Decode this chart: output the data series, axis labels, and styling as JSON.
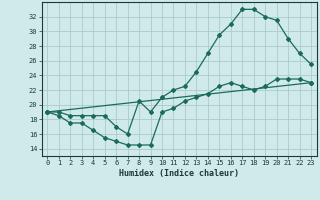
{
  "bg_color": "#d0eaea",
  "grid_color": "#aacccc",
  "line_color": "#1a6b5a",
  "xlabel": "Humidex (Indice chaleur)",
  "xlim": [
    -0.5,
    23.5
  ],
  "ylim": [
    13,
    34
  ],
  "yticks": [
    14,
    16,
    18,
    20,
    22,
    24,
    26,
    28,
    30,
    32
  ],
  "xticks": [
    0,
    1,
    2,
    3,
    4,
    5,
    6,
    7,
    8,
    9,
    10,
    11,
    12,
    13,
    14,
    15,
    16,
    17,
    18,
    19,
    20,
    21,
    22,
    23
  ],
  "line1_x": [
    0,
    1,
    2,
    3,
    4,
    5,
    6,
    7,
    8,
    9,
    10,
    11,
    12,
    13,
    14,
    15,
    16,
    17,
    18,
    19,
    20,
    21,
    22,
    23
  ],
  "line1_y": [
    19.0,
    18.5,
    17.5,
    17.5,
    16.5,
    15.5,
    15.0,
    14.5,
    14.5,
    14.5,
    19.0,
    19.5,
    20.5,
    21.0,
    21.5,
    22.5,
    23.0,
    22.5,
    22.0,
    22.5,
    23.5,
    23.5,
    23.5,
    23.0
  ],
  "line2_x": [
    0,
    1,
    2,
    3,
    4,
    5,
    6,
    7,
    8,
    9,
    10,
    11,
    12,
    13,
    14,
    15,
    16,
    17,
    18,
    19,
    20,
    21,
    22,
    23
  ],
  "line2_y": [
    19.0,
    19.0,
    18.5,
    18.5,
    18.5,
    18.5,
    17.0,
    16.0,
    20.5,
    19.0,
    21.0,
    22.0,
    22.5,
    24.5,
    27.0,
    29.5,
    31.0,
    33.0,
    33.0,
    32.0,
    31.5,
    29.0,
    27.0,
    25.5
  ],
  "line3_x": [
    0,
    23
  ],
  "line3_y": [
    19.0,
    23.0
  ],
  "marker": "D",
  "markersize": 2.0,
  "linewidth": 0.9,
  "tick_fontsize": 5.0,
  "xlabel_fontsize": 6.0
}
